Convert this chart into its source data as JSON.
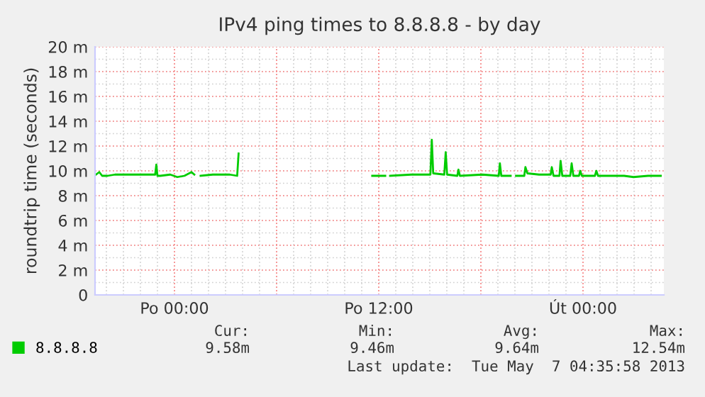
{
  "chart_data": {
    "type": "line",
    "title": "IPv4 ping times to 8.8.8.8 - by day",
    "ylabel": "roundtrip time (seconds)",
    "x": [
      "2013-05-05T19:23",
      "2013-05-05T19:35",
      "2013-05-05T19:45",
      "2013-05-05T20:04",
      "2013-05-05T20:30",
      "2013-05-05T21:15",
      "2013-05-05T22:05",
      "2013-05-05T22:52",
      "2013-05-05T22:56",
      "2013-05-05T23:00",
      "2013-05-05T23:10",
      "2013-05-05T23:45",
      "2013-05-06T00:10",
      "2013-05-06T00:35",
      "2013-05-06T01:00",
      "2013-05-06T01:10",
      "2013-05-06T01:21",
      "2013-05-06T01:32",
      "2013-05-06T02:15",
      "2013-05-06T03:15",
      "2013-05-06T03:41",
      "2013-05-06T03:46",
      "2013-05-06T07:00",
      "2013-05-06T11:37",
      "2013-05-06T12:23",
      "2013-05-06T12:30",
      "2013-05-06T12:40",
      "2013-05-06T13:55",
      "2013-05-06T15:02",
      "2013-05-06T15:07",
      "2013-05-06T15:12",
      "2013-05-06T15:51",
      "2013-05-06T15:56",
      "2013-05-06T16:01",
      "2013-05-06T16:37",
      "2013-05-06T16:41",
      "2013-05-06T16:46",
      "2013-05-06T18:05",
      "2013-05-06T19:03",
      "2013-05-06T19:07",
      "2013-05-06T19:12",
      "2013-05-06T19:45",
      "2013-05-06T19:54",
      "2013-05-06T20:04",
      "2013-05-06T20:33",
      "2013-05-06T20:37",
      "2013-05-06T20:44",
      "2013-05-06T21:25",
      "2013-05-06T22:06",
      "2013-05-06T22:10",
      "2013-05-06T22:16",
      "2013-05-06T22:37",
      "2013-05-06T22:41",
      "2013-05-06T22:47",
      "2013-05-06T23:15",
      "2013-05-06T23:20",
      "2013-05-06T23:26",
      "2013-05-06T23:46",
      "2013-05-06T23:50",
      "2013-05-06T23:56",
      "2013-05-07T00:42",
      "2013-05-07T00:47",
      "2013-05-07T00:53",
      "2013-05-07T02:25",
      "2013-05-07T02:58",
      "2013-05-07T03:49",
      "2013-05-07T04:34"
    ],
    "series": [
      {
        "name": "8.8.8.8",
        "color": "#00cc00",
        "values": [
          9.7,
          9.9,
          9.6,
          9.6,
          9.7,
          9.7,
          9.7,
          9.7,
          10.5,
          9.6,
          9.6,
          9.7,
          9.5,
          9.6,
          9.9,
          9.7,
          null,
          9.6,
          9.7,
          9.7,
          9.6,
          11.4,
          null,
          9.6,
          9.6,
          null,
          9.6,
          9.7,
          9.7,
          12.5,
          9.8,
          9.7,
          11.5,
          9.7,
          9.6,
          10.1,
          9.6,
          9.7,
          9.6,
          10.6,
          9.6,
          9.6,
          null,
          9.6,
          9.6,
          10.3,
          9.8,
          9.7,
          9.7,
          10.3,
          9.6,
          9.6,
          10.8,
          9.6,
          9.6,
          10.6,
          9.6,
          9.6,
          10.0,
          9.6,
          9.6,
          10.0,
          9.6,
          9.6,
          9.5,
          9.6,
          9.6
        ]
      }
    ],
    "xlim": [
      "2013-05-05T19:20",
      "2013-05-07T04:45"
    ],
    "xticks": [
      {
        "value": "2013-05-06T00:00",
        "label": "Po 00:00"
      },
      {
        "value": "2013-05-06T06:00",
        "label": null
      },
      {
        "value": "2013-05-06T12:00",
        "label": "Po 12:00"
      },
      {
        "value": "2013-05-06T18:00",
        "label": null
      },
      {
        "value": "2013-05-07T00:00",
        "label": "Út 00:00"
      }
    ],
    "ylim": [
      0,
      20
    ],
    "yticks": [
      {
        "value": 0,
        "label": "0"
      },
      {
        "value": 2,
        "label": "2 m"
      },
      {
        "value": 4,
        "label": "4 m"
      },
      {
        "value": 6,
        "label": "6 m"
      },
      {
        "value": 8,
        "label": "8 m"
      },
      {
        "value": 10,
        "label": "10 m"
      },
      {
        "value": 12,
        "label": "12 m"
      },
      {
        "value": 14,
        "label": "14 m"
      },
      {
        "value": 16,
        "label": "16 m"
      },
      {
        "value": 18,
        "label": "18 m"
      },
      {
        "value": 20,
        "label": "20 m"
      }
    ],
    "grid": true,
    "legend": "bottom left",
    "marker": "none",
    "line_style": "solid",
    "annotations": [
      "Cur:",
      "9.58m",
      "Min:",
      "9.46m",
      "Avg:",
      "9.64m",
      "Max:",
      "12.54m",
      "Last update:  Tue May  7 04:35:58 2013"
    ]
  }
}
